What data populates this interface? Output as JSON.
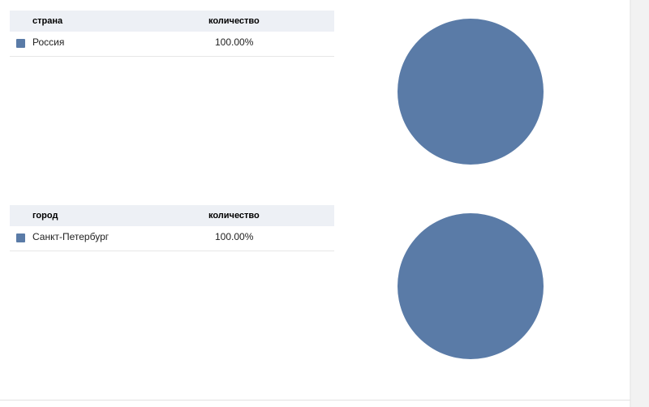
{
  "chart_data": [
    {
      "type": "pie",
      "columns": [
        "страна",
        "количество"
      ],
      "categories": [
        "Россия"
      ],
      "values": [
        100
      ],
      "value_labels": [
        "100.00%"
      ],
      "colors": [
        "#5a7ba7"
      ]
    },
    {
      "type": "pie",
      "columns": [
        "город",
        "количество"
      ],
      "categories": [
        "Санкт-Петербург"
      ],
      "values": [
        100
      ],
      "value_labels": [
        "100.00%"
      ],
      "colors": [
        "#5a7ba7"
      ]
    }
  ]
}
